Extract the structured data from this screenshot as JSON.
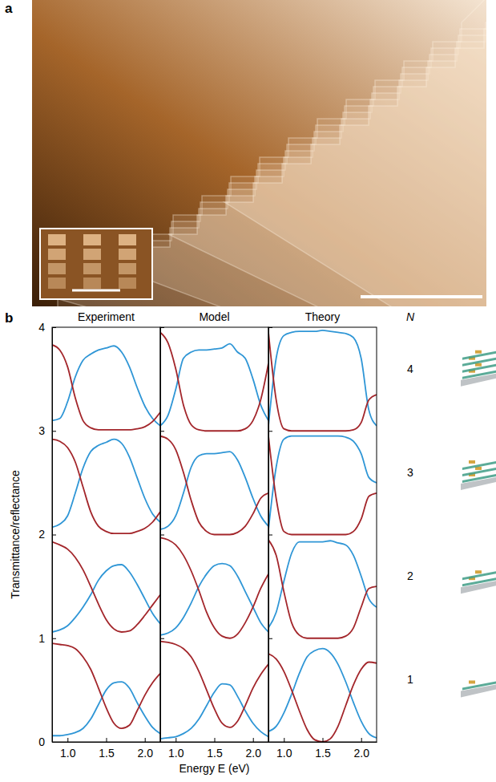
{
  "panel_labels": [
    "a",
    "b"
  ],
  "n_axis": {
    "label": "N",
    "values": [
      4,
      3,
      2,
      1
    ]
  },
  "chart_data": [
    {
      "type": "line",
      "title": "Experiment",
      "ylabel": "Transmittance/reflectance",
      "x": [
        0.8,
        0.9,
        1.0,
        1.1,
        1.2,
        1.3,
        1.4,
        1.5,
        1.6,
        1.7,
        1.8,
        1.9,
        2.0,
        2.1,
        2.2
      ],
      "xlim": [
        0.8,
        2.2
      ],
      "xticks": [
        {
          "value": 1,
          "label": "1.0"
        },
        {
          "value": 1.5,
          "label": "1.5"
        },
        {
          "value": 2,
          "label": "2.0"
        }
      ],
      "ylim": [
        0,
        4
      ],
      "yticks": [
        0,
        1,
        2,
        3,
        4
      ],
      "series": [
        {
          "color": "#2f96d6",
          "values": [
            0.06,
            0.06,
            0.07,
            0.09,
            0.13,
            0.22,
            0.36,
            0.5,
            0.57,
            0.58,
            0.52,
            0.38,
            0.25,
            0.14,
            0.08
          ]
        },
        {
          "color": "#a3262b",
          "values": [
            0.95,
            0.94,
            0.93,
            0.9,
            0.82,
            0.7,
            0.52,
            0.33,
            0.18,
            0.13,
            0.16,
            0.3,
            0.45,
            0.57,
            0.66
          ]
        },
        {
          "color": "#2f96d6",
          "values": [
            1.06,
            1.08,
            1.12,
            1.2,
            1.3,
            1.42,
            1.56,
            1.65,
            1.7,
            1.71,
            1.64,
            1.52,
            1.38,
            1.24,
            1.14
          ]
        },
        {
          "color": "#a3262b",
          "values": [
            1.93,
            1.9,
            1.86,
            1.78,
            1.66,
            1.5,
            1.33,
            1.18,
            1.09,
            1.06,
            1.07,
            1.13,
            1.22,
            1.32,
            1.42
          ]
        },
        {
          "color": "#2f96d6",
          "values": [
            2.07,
            2.1,
            2.18,
            2.4,
            2.64,
            2.8,
            2.86,
            2.89,
            2.92,
            2.88,
            2.75,
            2.55,
            2.35,
            2.2,
            2.12
          ]
        },
        {
          "color": "#a3262b",
          "values": [
            2.92,
            2.9,
            2.84,
            2.7,
            2.46,
            2.22,
            2.08,
            2.03,
            2.01,
            2.01,
            2.01,
            2.03,
            2.06,
            2.12,
            2.22
          ]
        },
        {
          "color": "#2f96d6",
          "values": [
            3.1,
            3.12,
            3.28,
            3.52,
            3.68,
            3.74,
            3.78,
            3.8,
            3.82,
            3.76,
            3.62,
            3.42,
            3.24,
            3.12,
            3.05
          ]
        },
        {
          "color": "#a3262b",
          "values": [
            3.83,
            3.78,
            3.62,
            3.32,
            3.1,
            3.03,
            3.01,
            3.01,
            3.01,
            3.01,
            3.01,
            3.02,
            3.04,
            3.09,
            3.18
          ]
        }
      ]
    },
    {
      "type": "line",
      "title": "Model",
      "xlabel": "Energy E (eV)",
      "tick_labels": "x",
      "x": [
        0.8,
        0.9,
        1.0,
        1.1,
        1.2,
        1.3,
        1.4,
        1.5,
        1.6,
        1.7,
        1.8,
        1.9,
        2.0,
        2.1,
        2.2
      ],
      "xlim": [
        0.8,
        2.2
      ],
      "xticks": [
        {
          "value": 1,
          "label": "1.0"
        },
        {
          "value": 1.5,
          "label": "1.5"
        },
        {
          "value": 2,
          "label": "2.0"
        }
      ],
      "ylim": [
        0,
        4
      ],
      "yticks": [
        0,
        1,
        2,
        3,
        4
      ],
      "series": [
        {
          "color": "#2f96d6",
          "values": [
            0.03,
            0.04,
            0.05,
            0.08,
            0.13,
            0.22,
            0.35,
            0.48,
            0.56,
            0.55,
            0.44,
            0.3,
            0.18,
            0.1,
            0.05
          ]
        },
        {
          "color": "#a3262b",
          "values": [
            0.97,
            0.96,
            0.94,
            0.9,
            0.82,
            0.68,
            0.5,
            0.32,
            0.18,
            0.14,
            0.2,
            0.35,
            0.52,
            0.65,
            0.75
          ]
        },
        {
          "color": "#2f96d6",
          "values": [
            1.03,
            1.05,
            1.1,
            1.2,
            1.34,
            1.5,
            1.62,
            1.7,
            1.72,
            1.7,
            1.6,
            1.45,
            1.3,
            1.15,
            1.06
          ]
        },
        {
          "color": "#a3262b",
          "values": [
            1.97,
            1.95,
            1.9,
            1.8,
            1.65,
            1.46,
            1.25,
            1.1,
            1.02,
            1.0,
            1.04,
            1.15,
            1.3,
            1.48,
            1.62
          ]
        },
        {
          "color": "#2f96d6",
          "values": [
            2.05,
            2.08,
            2.18,
            2.4,
            2.65,
            2.76,
            2.78,
            2.78,
            2.79,
            2.8,
            2.72,
            2.55,
            2.35,
            2.18,
            2.08
          ]
        },
        {
          "color": "#a3262b",
          "values": [
            2.95,
            2.92,
            2.82,
            2.6,
            2.33,
            2.12,
            2.03,
            2.0,
            2.0,
            2.0,
            2.02,
            2.08,
            2.2,
            2.35,
            2.4
          ]
        },
        {
          "color": "#2f96d6",
          "values": [
            3.05,
            3.15,
            3.4,
            3.7,
            3.76,
            3.78,
            3.78,
            3.79,
            3.8,
            3.84,
            3.76,
            3.7,
            3.5,
            3.25,
            3.1
          ]
        },
        {
          "color": "#a3262b",
          "values": [
            3.95,
            3.85,
            3.6,
            3.25,
            3.06,
            3.01,
            3.0,
            3.0,
            3.0,
            3.0,
            3.0,
            3.02,
            3.1,
            3.3,
            3.65
          ]
        }
      ]
    },
    {
      "type": "line",
      "title": "Theory",
      "tick_labels": "x",
      "x": [
        0.8,
        0.9,
        1.0,
        1.1,
        1.2,
        1.3,
        1.4,
        1.5,
        1.6,
        1.7,
        1.8,
        1.9,
        2.0,
        2.1,
        2.2
      ],
      "xlim": [
        0.8,
        2.2
      ],
      "xticks": [
        {
          "value": 1,
          "label": "1.0"
        },
        {
          "value": 1.5,
          "label": "1.5"
        },
        {
          "value": 2,
          "label": "2.0"
        }
      ],
      "ylim": [
        0,
        4
      ],
      "yticks": [
        0,
        1,
        2,
        3,
        4
      ],
      "series": [
        {
          "color": "#2f96d6",
          "values": [
            0.1,
            0.15,
            0.28,
            0.46,
            0.66,
            0.82,
            0.88,
            0.9,
            0.86,
            0.75,
            0.58,
            0.38,
            0.2,
            0.08,
            0.04
          ]
        },
        {
          "color": "#a3262b",
          "values": [
            0.85,
            0.8,
            0.68,
            0.5,
            0.3,
            0.12,
            0.02,
            0.0,
            0.03,
            0.15,
            0.35,
            0.55,
            0.7,
            0.77,
            0.76
          ]
        },
        {
          "color": "#2f96d6",
          "values": [
            1.1,
            1.25,
            1.55,
            1.82,
            1.93,
            1.93,
            1.93,
            1.93,
            1.94,
            1.92,
            1.9,
            1.8,
            1.6,
            1.38,
            1.3
          ]
        },
        {
          "color": "#a3262b",
          "values": [
            1.95,
            1.8,
            1.45,
            1.15,
            1.03,
            1.0,
            1.0,
            1.0,
            1.0,
            1.0,
            1.02,
            1.1,
            1.3,
            1.48,
            1.5
          ]
        },
        {
          "color": "#2f96d6",
          "values": [
            2.05,
            2.65,
            2.92,
            2.95,
            2.95,
            2.95,
            2.95,
            2.95,
            2.95,
            2.95,
            2.94,
            2.9,
            2.78,
            2.55,
            2.5
          ]
        },
        {
          "color": "#a3262b",
          "values": [
            2.95,
            2.35,
            2.03,
            2.0,
            2.0,
            2.0,
            2.0,
            2.0,
            2.0,
            2.0,
            2.0,
            2.03,
            2.15,
            2.37,
            2.4
          ]
        },
        {
          "color": "#2f96d6",
          "values": [
            3.05,
            3.7,
            3.92,
            3.95,
            3.96,
            3.96,
            3.96,
            3.97,
            3.96,
            3.95,
            3.94,
            3.9,
            3.7,
            3.2,
            3.05
          ]
        },
        {
          "color": "#a3262b",
          "values": [
            3.95,
            3.3,
            3.02,
            3.0,
            3.0,
            3.0,
            3.0,
            3.0,
            3.0,
            3.0,
            3.0,
            3.01,
            3.08,
            3.3,
            3.35
          ]
        }
      ]
    }
  ]
}
